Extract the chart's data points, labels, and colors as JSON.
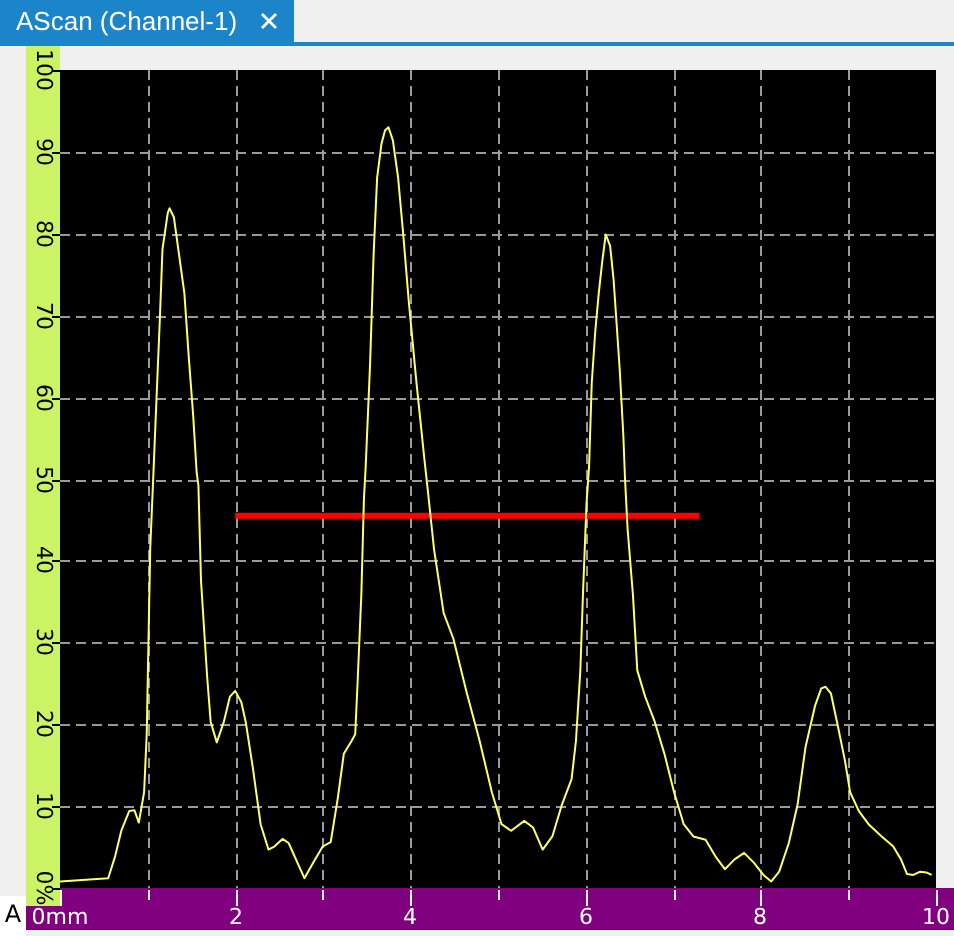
{
  "chart_data": {
    "type": "line",
    "title": "AScan (Channel-1)",
    "annotations": [
      "A"
    ],
    "xlim": [
      0,
      10
    ],
    "ylim": [
      0,
      100
    ],
    "xticks": [
      {
        "value": 0,
        "label": "0mm"
      },
      {
        "value": 1,
        "label": null
      },
      2,
      {
        "value": 3,
        "label": null
      },
      4,
      {
        "value": 5,
        "label": null
      },
      6,
      {
        "value": 7,
        "label": null
      },
      8,
      {
        "value": 9,
        "label": null
      },
      10
    ],
    "yticks": [
      {
        "value": 0,
        "label": "0%"
      },
      10,
      20,
      30,
      40,
      50,
      60,
      70,
      80,
      90,
      100
    ],
    "grid": true,
    "marker": "none",
    "series": [
      {
        "color": "#ffff66",
        "x": [
          0,
          0.55,
          0.63,
          0.7,
          0.79,
          0.85,
          0.9,
          0.96,
          0.99,
          1.03,
          1.07,
          1.1,
          1.14,
          1.17,
          1.23,
          1.25,
          1.3,
          1.34,
          1.42,
          1.47,
          1.52,
          1.56,
          1.58,
          1.61,
          1.68,
          1.72,
          1.79,
          1.87,
          1.94,
          2.0,
          2.07,
          2.12,
          2.2,
          2.29,
          2.38,
          2.45,
          2.54,
          2.61,
          2.71,
          2.79,
          2.89,
          3.0,
          3.09,
          3.17,
          3.24,
          3.33,
          3.37,
          3.4,
          3.44,
          3.47,
          3.49,
          3.54,
          3.58,
          3.62,
          3.67,
          3.71,
          3.75,
          3.8,
          3.86,
          3.92,
          3.98,
          4.07,
          4.16,
          4.2,
          4.27,
          4.38,
          4.49,
          4.64,
          4.79,
          4.93,
          5.04,
          5.15,
          5.3,
          5.4,
          5.51,
          5.62,
          5.73,
          5.84,
          5.89,
          5.94,
          5.97,
          6.01,
          6.04,
          6.07,
          6.11,
          6.15,
          6.19,
          6.23,
          6.28,
          6.32,
          6.35,
          6.39,
          6.43,
          6.45,
          6.48,
          6.54,
          6.59,
          6.68,
          6.79,
          6.9,
          7.01,
          7.12,
          7.23,
          7.37,
          7.48,
          7.59,
          7.7,
          7.81,
          7.92,
          8.03,
          8.12,
          8.21,
          8.32,
          8.42,
          8.51,
          8.62,
          8.69,
          8.74,
          8.8,
          8.87,
          8.96,
          9.02,
          9.12,
          9.23,
          9.38,
          9.51,
          9.6,
          9.67,
          9.74,
          9.82,
          9.89,
          9.95
        ],
        "values": [
          0.8,
          1.2,
          3.9,
          7.0,
          9.4,
          9.5,
          8.0,
          11.7,
          18.8,
          41.5,
          51.6,
          59.4,
          69.6,
          78.1,
          82.5,
          83.1,
          82.0,
          78.9,
          72.7,
          64.9,
          57.8,
          50.8,
          49.2,
          37.5,
          25.8,
          20.3,
          17.8,
          20.3,
          23.4,
          24.1,
          22.7,
          20.3,
          14.8,
          7.8,
          4.7,
          5.1,
          6.0,
          5.5,
          3.1,
          1.2,
          3.1,
          5.1,
          5.6,
          10.9,
          16.4,
          18.0,
          18.8,
          25.8,
          35.9,
          47.7,
          51.6,
          64.1,
          77.4,
          86.8,
          91.0,
          92.6,
          93.0,
          91.4,
          86.8,
          79.7,
          71.9,
          61.7,
          52.4,
          48.5,
          41.4,
          33.6,
          30.5,
          24.0,
          18.0,
          11.7,
          7.8,
          7.0,
          8.2,
          7.4,
          4.7,
          6.3,
          10.2,
          13.3,
          18.0,
          26.6,
          35.9,
          46.9,
          51.6,
          61.7,
          68.0,
          72.7,
          76.6,
          79.9,
          78.5,
          74.3,
          69.6,
          63.3,
          55.5,
          50.0,
          43.8,
          35.9,
          26.6,
          23.4,
          20.3,
          16.4,
          11.7,
          7.8,
          6.3,
          5.9,
          3.9,
          2.3,
          3.5,
          4.3,
          3.1,
          1.6,
          0.8,
          2.0,
          5.5,
          10.2,
          17.2,
          22.3,
          24.4,
          24.6,
          23.8,
          20.3,
          15.6,
          11.7,
          9.4,
          7.8,
          6.3,
          5.1,
          3.5,
          1.7,
          1.6,
          2.0,
          1.9,
          1.6
        ]
      },
      {
        "color": "#ff0000",
        "x": [
          2.0,
          7.3
        ],
        "values": [
          45.5,
          45.5
        ]
      }
    ]
  }
}
